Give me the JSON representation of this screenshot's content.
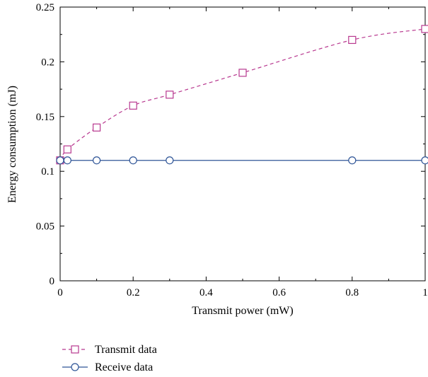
{
  "chart_data": {
    "type": "line",
    "title": "",
    "xlabel": "Transmit power (mW)",
    "ylabel": "Energy consumption (mJ)",
    "xlim": [
      0,
      1
    ],
    "ylim": [
      0,
      0.25
    ],
    "x_ticks": [
      0,
      0.2,
      0.4,
      0.6,
      0.8,
      1
    ],
    "x_tick_labels": [
      "0",
      "0.2",
      "0.4",
      "0.6",
      "0.8",
      "1"
    ],
    "y_ticks": [
      0,
      0.05,
      0.1,
      0.15,
      0.2,
      0.25
    ],
    "y_tick_labels": [
      "0",
      "0.05",
      "0.1",
      "0.15",
      "0.2",
      "0.25"
    ],
    "grid": false,
    "legend_position": "bottom-left, below plot",
    "series": [
      {
        "name": "Transmit data",
        "color": "#b8388f",
        "line_style": "dashed",
        "marker": "square",
        "x": [
          0,
          0.02,
          0.1,
          0.2,
          0.3,
          0.5,
          0.8,
          1.0
        ],
        "y": [
          0.11,
          0.12,
          0.14,
          0.16,
          0.17,
          0.19,
          0.22,
          0.23
        ]
      },
      {
        "name": "Receive data",
        "color": "#2f5597",
        "line_style": "solid",
        "marker": "circle",
        "x": [
          0,
          0.02,
          0.1,
          0.2,
          0.3,
          0.8,
          1.0
        ],
        "y": [
          0.11,
          0.11,
          0.11,
          0.11,
          0.11,
          0.11,
          0.11
        ]
      }
    ]
  }
}
